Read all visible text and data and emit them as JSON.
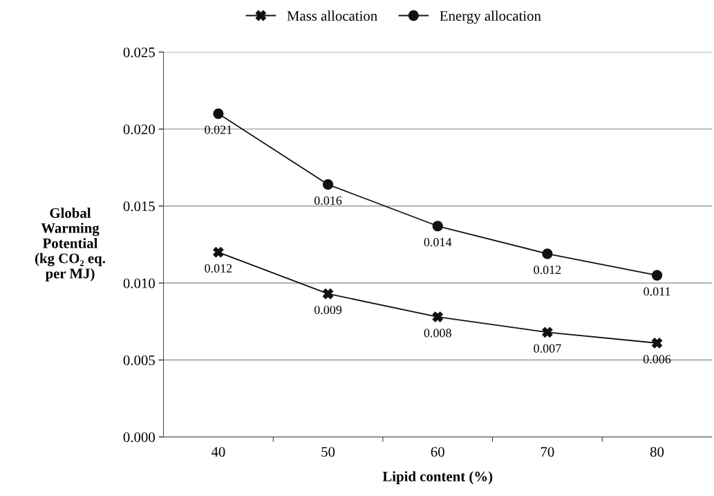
{
  "chart_data": {
    "type": "line",
    "xlabel": "Lipid content (%)",
    "ylabel": "Global\nWarming\nPotential\n(kg CO₂ eq.\nper MJ)",
    "categories": [
      "40",
      "50",
      "60",
      "70",
      "80"
    ],
    "series": [
      {
        "name": "Mass allocation",
        "color": "#111111",
        "marker": "cross",
        "values": [
          0.012,
          0.0093,
          0.0078,
          0.0068,
          0.0061
        ],
        "value_labels": [
          "0.012",
          "0.009",
          "0.008",
          "0.007",
          "0.006"
        ]
      },
      {
        "name": "Energy allocation",
        "color": "#111111",
        "marker": "circle",
        "values": [
          0.021,
          0.0164,
          0.0137,
          0.0119,
          0.0105
        ],
        "value_labels": [
          "0.021",
          "0.016",
          "0.014",
          "0.012",
          "0.011"
        ]
      }
    ],
    "ylim": [
      0,
      0.025
    ],
    "yticks": [
      {
        "value": 0,
        "label": "0.000"
      },
      {
        "value": 0.005,
        "label": "0.005"
      },
      {
        "value": 0.01,
        "label": "0.010"
      },
      {
        "value": 0.015,
        "label": "0.015"
      },
      {
        "value": 0.02,
        "label": "0.020"
      },
      {
        "value": 0.025,
        "label": "0.025"
      }
    ],
    "grid": "y",
    "legend": "top",
    "line_style": "solid"
  }
}
